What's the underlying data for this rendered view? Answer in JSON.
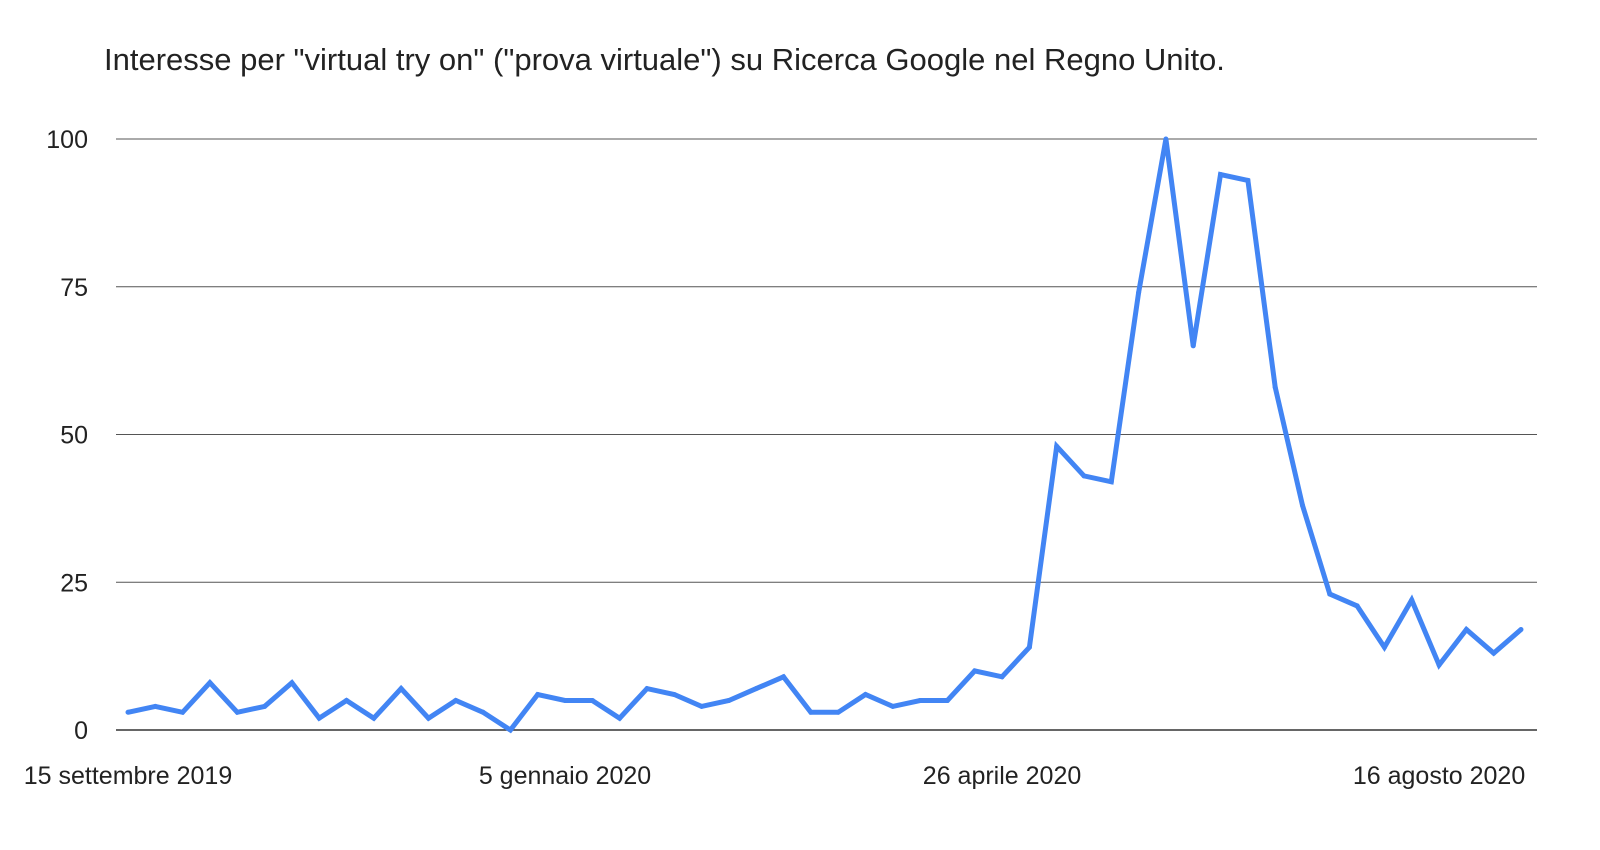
{
  "chart_data": {
    "type": "line",
    "title": "Interesse per \"virtual try on\" (\"prova virtuale\") su Ricerca Google nel Regno Unito.",
    "xlabel": "",
    "ylabel": "",
    "ylim": [
      0,
      100
    ],
    "yticks": [
      "0",
      "25",
      "50",
      "75",
      "100"
    ],
    "xtick_labels": [
      {
        "label": "15 settembre 2019",
        "index": 0
      },
      {
        "label": "5 gennaio 2020",
        "index": 16
      },
      {
        "label": "26 aprile 2020",
        "index": 32
      },
      {
        "label": "16 agosto 2020",
        "index": 48
      }
    ],
    "grid": true,
    "series": [
      {
        "color": "#4285F4",
        "values": [
          3,
          4,
          3,
          8,
          3,
          4,
          8,
          2,
          5,
          2,
          7,
          2,
          5,
          3,
          0,
          6,
          5,
          5,
          2,
          7,
          6,
          4,
          5,
          7,
          9,
          3,
          3,
          6,
          4,
          5,
          5,
          10,
          9,
          14,
          48,
          43,
          42,
          74,
          100,
          65,
          94,
          93,
          58,
          38,
          23,
          21,
          14,
          22,
          11,
          17,
          13,
          17
        ]
      }
    ]
  }
}
